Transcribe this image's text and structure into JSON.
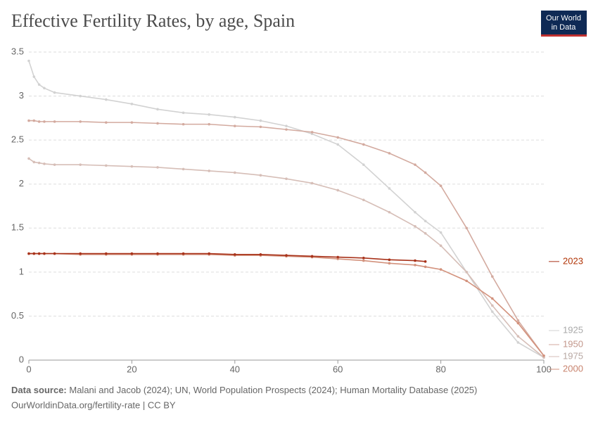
{
  "chart_data": {
    "type": "line",
    "title": "Effective Fertility Rates, by age, Spain",
    "logo": [
      "Our World",
      "in Data"
    ],
    "source_label": "Data source:",
    "source": "Malani and Jacob (2024); UN, World Population Prospects (2024); Human Mortality Database (2025)",
    "footer": "OurWorldinData.org/fertility-rate | CC BY",
    "x": [
      0,
      1,
      2,
      3,
      5,
      10,
      15,
      20,
      25,
      30,
      35,
      40,
      45,
      50,
      55,
      60,
      65,
      70,
      75,
      77,
      80,
      85,
      90,
      95,
      100
    ],
    "xlim": [
      0,
      100
    ],
    "xticks": [
      0,
      20,
      40,
      60,
      80,
      100
    ],
    "ylim": [
      0,
      3.5
    ],
    "yticks": [
      0,
      0.5,
      1,
      1.5,
      2,
      2.5,
      3,
      3.5
    ],
    "grid": true,
    "series": [
      {
        "name": "1925",
        "color": "#d2d2d2",
        "label_color": "#a9a9a9",
        "values": [
          3.4,
          3.22,
          3.13,
          3.09,
          3.04,
          3.0,
          2.96,
          2.91,
          2.85,
          2.81,
          2.79,
          2.76,
          2.72,
          2.66,
          2.57,
          2.45,
          2.22,
          1.95,
          1.68,
          1.58,
          1.45,
          1.0,
          0.55,
          0.2,
          0.03
        ]
      },
      {
        "name": "1950",
        "color": "#d3aa9f",
        "label_color": "#c3978b",
        "values": [
          2.72,
          2.72,
          2.71,
          2.71,
          2.71,
          2.71,
          2.7,
          2.7,
          2.69,
          2.68,
          2.68,
          2.66,
          2.65,
          2.62,
          2.59,
          2.53,
          2.45,
          2.35,
          2.22,
          2.13,
          1.98,
          1.5,
          0.95,
          0.45,
          0.05
        ]
      },
      {
        "name": "1975",
        "color": "#d6beb7",
        "label_color": "#b8a8a3",
        "values": [
          2.29,
          2.25,
          2.24,
          2.23,
          2.22,
          2.22,
          2.21,
          2.2,
          2.19,
          2.17,
          2.15,
          2.13,
          2.1,
          2.06,
          2.01,
          1.93,
          1.82,
          1.68,
          1.52,
          1.44,
          1.3,
          1.0,
          0.62,
          0.27,
          0.03
        ]
      },
      {
        "name": "2000",
        "color": "#d3927d",
        "label_color": "#c8836e",
        "values": [
          1.21,
          1.21,
          1.21,
          1.21,
          1.21,
          1.2,
          1.2,
          1.2,
          1.2,
          1.2,
          1.2,
          1.19,
          1.19,
          1.18,
          1.17,
          1.15,
          1.13,
          1.1,
          1.08,
          1.06,
          1.03,
          0.9,
          0.7,
          0.42,
          0.05
        ]
      },
      {
        "name": "2023",
        "color": "#a8321a",
        "label_color": "#b13507",
        "values": [
          1.21,
          1.21,
          1.21,
          1.21,
          1.21,
          1.21,
          1.21,
          1.21,
          1.21,
          1.21,
          1.21,
          1.2,
          1.2,
          1.19,
          1.18,
          1.17,
          1.16,
          1.14,
          1.13,
          1.12,
          null,
          null,
          null,
          null,
          null
        ]
      }
    ]
  }
}
